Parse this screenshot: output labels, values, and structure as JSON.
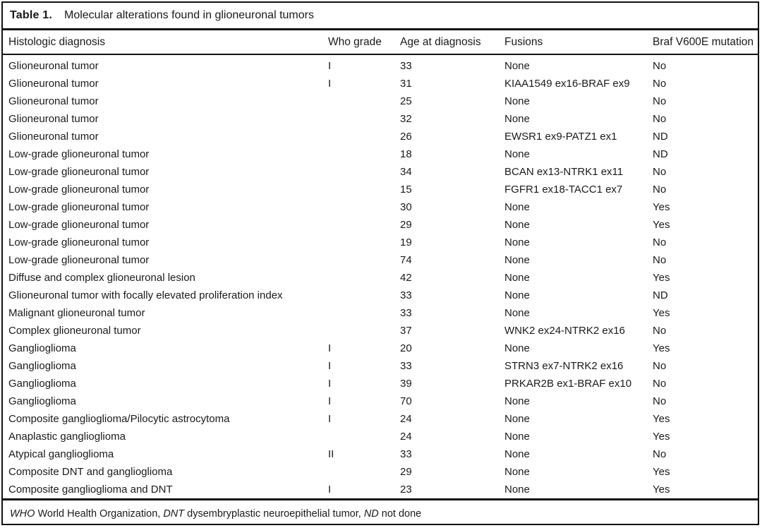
{
  "title": {
    "label": "Table 1.",
    "text": "Molecular alterations found in glioneuronal tumors"
  },
  "table": {
    "columns": [
      "Histologic diagnosis",
      "Who grade",
      "Age at diagnosis",
      "Fusions",
      "Braf V600E mutation"
    ],
    "rows": [
      [
        "Glioneuronal tumor",
        "I",
        "33",
        "None",
        "No"
      ],
      [
        "Glioneuronal tumor",
        "I",
        "31",
        "KIAA1549 ex16-BRAF ex9",
        "No"
      ],
      [
        "Glioneuronal tumor",
        "",
        "25",
        "None",
        "No"
      ],
      [
        "Glioneuronal tumor",
        "",
        "32",
        "None",
        "No"
      ],
      [
        "Glioneuronal tumor",
        "",
        "26",
        "EWSR1 ex9-PATZ1 ex1",
        "ND"
      ],
      [
        "Low-grade glioneuronal tumor",
        "",
        "18",
        "None",
        "ND"
      ],
      [
        "Low-grade glioneuronal tumor",
        "",
        "34",
        "BCAN ex13-NTRK1 ex11",
        "No"
      ],
      [
        "Low-grade glioneuronal tumor",
        "",
        "15",
        "FGFR1 ex18-TACC1 ex7",
        "No"
      ],
      [
        "Low-grade glioneuronal tumor",
        "",
        "30",
        "None",
        "Yes"
      ],
      [
        "Low-grade glioneuronal tumor",
        "",
        "29",
        "None",
        "Yes"
      ],
      [
        "Low-grade glioneuronal tumor",
        "",
        "19",
        "None",
        "No"
      ],
      [
        "Low-grade glioneuronal tumor",
        "",
        "74",
        "None",
        "No"
      ],
      [
        "Diffuse and complex glioneuronal lesion",
        "",
        "42",
        "None",
        "Yes"
      ],
      [
        "Glioneuronal tumor with focally elevated proliferation index",
        "",
        "33",
        "None",
        "ND"
      ],
      [
        "Malignant glioneuronal tumor",
        "",
        "33",
        "None",
        "Yes"
      ],
      [
        "Complex glioneuronal tumor",
        "",
        "37",
        "WNK2 ex24-NTRK2 ex16",
        "No"
      ],
      [
        "Ganglioglioma",
        "I",
        "20",
        "None",
        "Yes"
      ],
      [
        "Ganglioglioma",
        "I",
        "33",
        "STRN3 ex7-NTRK2 ex16",
        "No"
      ],
      [
        "Ganglioglioma",
        "I",
        "39",
        "PRKAR2B ex1-BRAF ex10",
        "No"
      ],
      [
        "Ganglioglioma",
        "I",
        "70",
        "None",
        "No"
      ],
      [
        "Composite ganglioglioma/Pilocytic astrocytoma",
        "I",
        "24",
        "None",
        "Yes"
      ],
      [
        "Anaplastic ganglioglioma",
        "",
        "24",
        "None",
        "Yes"
      ],
      [
        "Atypical ganglioglioma",
        "II",
        "33",
        "None",
        "No"
      ],
      [
        "Composite DNT and ganglioglioma",
        "",
        "29",
        "None",
        "Yes"
      ],
      [
        "Composite ganglioglioma and DNT",
        "I",
        "23",
        "None",
        "Yes"
      ]
    ]
  },
  "footnote": {
    "segments": [
      {
        "text": "WHO",
        "italic": true
      },
      {
        "text": " World Health Organization, ",
        "italic": false
      },
      {
        "text": "DNT",
        "italic": true
      },
      {
        "text": " dysembryplastic neuroepithelial tumor, ",
        "italic": false
      },
      {
        "text": "ND",
        "italic": true
      },
      {
        "text": " not done",
        "italic": false
      }
    ]
  },
  "colors": {
    "text": "#1a1a1a",
    "rule": "#111111",
    "background": "#ffffff"
  }
}
